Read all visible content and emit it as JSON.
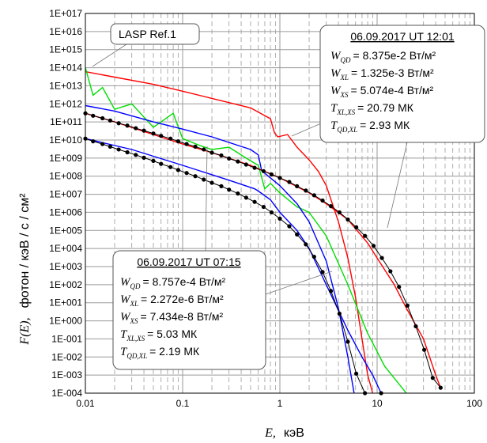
{
  "chart_data": {
    "type": "line",
    "x_scale": "log",
    "y_scale": "log",
    "xlim": [
      0.01,
      100
    ],
    "ylim": [
      0.0001,
      1e+17
    ],
    "grid": true,
    "xlabel_var": "E,",
    "xlabel_unit": "кэВ",
    "ylabel_var": "F(E),",
    "ylabel_unit": "фотон / кэВ / с / см²",
    "x_ticks": [
      "0.01",
      "0.1",
      "1",
      "10",
      "100"
    ],
    "y_ticks": [
      "1E+017",
      "1E+016",
      "1E+015",
      "1E+014",
      "1E+013",
      "1E+012",
      "1E+011",
      "1E+010",
      "1E+009",
      "1E+008",
      "1E+007",
      "1E+006",
      "1E+005",
      "1E+004",
      "1E+003",
      "1E+002",
      "1E+001",
      "1E+000",
      "1E-001",
      "1E-002",
      "1E-003",
      "1E-004"
    ],
    "colors": {
      "red": "#ff0000",
      "green": "#00dd00",
      "blue": "#0000ff",
      "black": "#000000",
      "grid": "#9a9a9a"
    },
    "series": [
      {
        "name": "LASP Ref.1",
        "color": "#ff0000",
        "x": [
          0.01,
          0.02,
          0.05,
          0.1,
          0.2,
          0.5,
          0.8,
          0.88,
          0.95,
          1.2,
          1.5,
          2,
          2.5,
          3,
          4,
          5,
          6,
          7,
          8,
          9
        ],
        "y": [
          60000000000000.0,
          30000000000000.0,
          12000000000000.0,
          5000000000000.0,
          2000000000000.0,
          600000000000.0,
          150000000000.0,
          25000000000.0,
          15000000000.0,
          20000000000.0,
          4000000000.0,
          800000000.0,
          180000000.0,
          30000000.0,
          300000.0,
          3000.0,
          20,
          0.1,
          0.001,
          0.0001
        ]
      },
      {
        "name": "",
        "color": "#00dd00",
        "x": [
          0.01,
          0.012,
          0.015,
          0.02,
          0.03,
          0.05,
          0.08,
          0.1,
          0.15,
          0.2,
          0.3,
          0.5,
          0.6,
          0.7,
          0.8,
          1,
          1.5,
          2,
          3,
          5,
          8,
          12,
          20
        ],
        "y": [
          100000000000000.0,
          3000000000000.0,
          8000000000000.0,
          500000000000.0,
          1000000000000.0,
          50000000000.0,
          300000000000.0,
          12000000000.0,
          5000000000.0,
          3000000000.0,
          4000000000.0,
          700000000.0,
          400000000.0,
          20000000.0,
          40000000.0,
          12000000.0,
          2000000.0,
          1000000.0,
          50000.0,
          100,
          0.2,
          0.003,
          0.0001
        ]
      },
      {
        "name": "",
        "color": "#0000ff",
        "x": [
          0.01,
          0.02,
          0.05,
          0.1,
          0.2,
          0.5,
          0.6,
          0.65,
          0.8,
          1,
          1.5,
          2,
          3,
          4,
          5,
          5.8
        ],
        "y": [
          800000000000.0,
          400000000000.0,
          100000000000.0,
          40000000000.0,
          15000000000.0,
          3000000000.0,
          1500000000.0,
          200000000.0,
          80000000.0,
          30000000.0,
          3000000.0,
          300000.0,
          2000.0,
          5,
          0.01,
          0.0001
        ]
      },
      {
        "name": "",
        "color": "#0000ff",
        "x": [
          0.01,
          0.03,
          0.1,
          0.3,
          0.55,
          0.6,
          0.8,
          1,
          1.5,
          2,
          3,
          5,
          7,
          9,
          11
        ],
        "y": [
          12000000000.0,
          3000000000.0,
          400000000.0,
          60000000.0,
          20000000.0,
          15000000.0,
          5000000.0,
          1000000.0,
          100000.0,
          10000.0,
          100,
          0.3,
          0.01,
          0.001,
          0.0001
        ]
      },
      {
        "name": "",
        "color": "#ff0000",
        "x": [
          0.01,
          0.02,
          0.05,
          0.1,
          0.2,
          0.5,
          1,
          2,
          3,
          5,
          8,
          10,
          15,
          20,
          30,
          40,
          45
        ],
        "y": [
          300000000000.0,
          100000000000.0,
          20000000000.0,
          6000000000.0,
          2000000000.0,
          400000000.0,
          80000000.0,
          12000000.0,
          3000000.0,
          400000.0,
          20000.0,
          3000.0,
          100,
          5,
          0.1,
          0.001,
          0.0002
        ]
      }
    ],
    "markers_series": [
      {
        "color": "#000000",
        "x": [
          0.01,
          0.012,
          0.015,
          0.018,
          0.022,
          0.027,
          0.033,
          0.04,
          0.05,
          0.06,
          0.075,
          0.09,
          0.11,
          0.135,
          0.165,
          0.2,
          0.25,
          0.3,
          0.37,
          0.45,
          0.55,
          0.68,
          0.82,
          1,
          1.25,
          1.5,
          1.85,
          2.25,
          2.75,
          3.35,
          4.1,
          5,
          6.1,
          7.5,
          9.2,
          11.2,
          13.7,
          16.8,
          20.5,
          25,
          30.5,
          37.3,
          45
        ],
        "y": [
          300000000000.0,
          220000000000.0,
          160000000000.0,
          120000000000.0,
          85000000000.0,
          63000000000.0,
          45000000000.0,
          33000000000.0,
          23000000000.0,
          17000000000.0,
          12000000000.0,
          8500000000.0,
          6000000000.0,
          4300000000.0,
          3000000000.0,
          2000000000.0,
          1400000000.0,
          950000000.0,
          650000000.0,
          440000000.0,
          290000000.0,
          190000000.0,
          125000000.0,
          80000000.0,
          48000000.0,
          28000000.0,
          16000000.0,
          8800000.0,
          4500000.0,
          2200000.0,
          1000000.0,
          400000.0,
          150000.0,
          50000.0,
          14000.0,
          3000.0,
          550,
          75,
          7,
          0.5,
          0.025,
          0.0007,
          0.0002
        ]
      },
      {
        "color": "#000000",
        "x": [
          0.01,
          0.012,
          0.015,
          0.018,
          0.022,
          0.027,
          0.033,
          0.04,
          0.05,
          0.06,
          0.075,
          0.09,
          0.11,
          0.135,
          0.165,
          0.2,
          0.25,
          0.3,
          0.37,
          0.45,
          0.55,
          0.68,
          0.82,
          1,
          1.25,
          1.5,
          1.85,
          2.25,
          2.75,
          3.35,
          4.1,
          5,
          6.1,
          7.5,
          9.2,
          11
        ],
        "y": [
          12000000000.0,
          8500000000.0,
          6000000000.0,
          4300000000.0,
          3000000000.0,
          2100000000.0,
          1500000000.0,
          1050000000.0,
          700000000.0,
          480000000.0,
          320000000.0,
          220000000.0,
          150000000.0,
          100000000.0,
          65000000.0,
          43000000.0,
          28000000.0,
          18000000.0,
          11000000.0,
          6500000.0,
          3800000.0,
          2000000.0,
          1000000.0,
          450000.0,
          170000.0,
          60000.0,
          17000.0,
          3500.0,
          500,
          45,
          2.5,
          0.07,
          0.0012,
          0.0001,
          3e-05,
          0.0001
        ]
      }
    ],
    "annotations": {
      "ref_label": "LASP Ref.1",
      "box_top": {
        "date": "06.09.2017  UT 12:01",
        "rows": [
          {
            "sym": "W",
            "sub": "QD",
            "value": "= 8.375e-2 Вт/м²"
          },
          {
            "sym": "W",
            "sub": "XL",
            "value": "= 1.325e-3 Вт/м²"
          },
          {
            "sym": "W",
            "sub": "XS",
            "value": "= 5.074e-4 Вт/м²"
          },
          {
            "sym": "T",
            "sub": "XL,XS",
            "value": "= 20.79 МК"
          },
          {
            "sym": "T",
            "sub": "QD,XL",
            "value": "=  2.93 МК"
          }
        ]
      },
      "box_bottom": {
        "date": "06.09.2017  UT 07:15",
        "rows": [
          {
            "sym": "W",
            "sub": "QD",
            "value": "= 8.757e-4 Вт/м²"
          },
          {
            "sym": "W",
            "sub": "XL",
            "value": "= 2.272e-6 Вт/м²"
          },
          {
            "sym": "W",
            "sub": "XS",
            "value": "= 7.434e-8 Вт/м²"
          },
          {
            "sym": "T",
            "sub": "XL,XS",
            "value": "= 5.03 МК"
          },
          {
            "sym": "T",
            "sub": "QD,XL",
            "value": "= 2.19 МК"
          }
        ]
      }
    }
  }
}
